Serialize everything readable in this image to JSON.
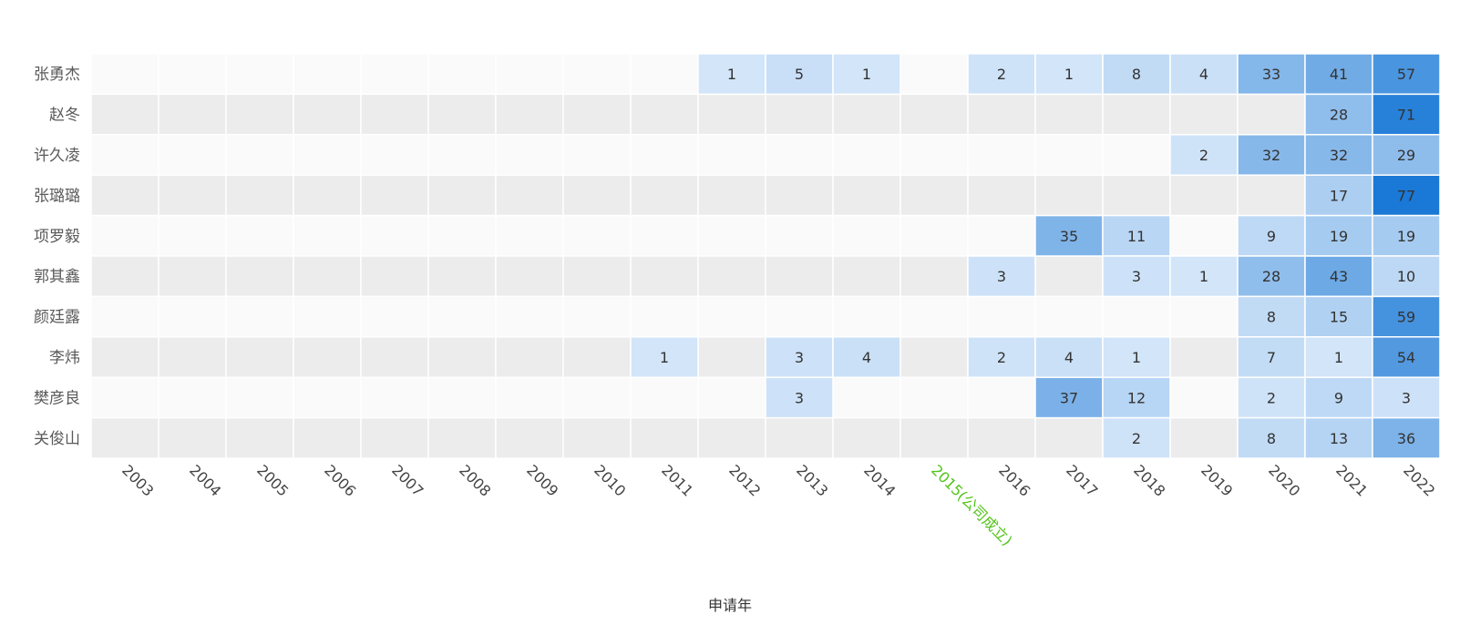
{
  "chart_data": {
    "type": "heatmap",
    "xlabel": "申请年",
    "x": [
      "2003",
      "2004",
      "2005",
      "2006",
      "2007",
      "2008",
      "2009",
      "2010",
      "2011",
      "2012",
      "2013",
      "2014",
      "2015(公司成立)",
      "2016",
      "2017",
      "2018",
      "2019",
      "2020",
      "2021",
      "2022"
    ],
    "highlight_x": "2015(公司成立)",
    "y": [
      "张勇杰",
      "赵冬",
      "许久凌",
      "张璐璐",
      "项罗毅",
      "郭其鑫",
      "颜廷露",
      "李炜",
      "樊彦良",
      "关俊山"
    ],
    "values": [
      [
        null,
        null,
        null,
        null,
        null,
        null,
        null,
        null,
        null,
        1,
        5,
        1,
        null,
        2,
        1,
        8,
        4,
        33,
        41,
        57
      ],
      [
        null,
        null,
        null,
        null,
        null,
        null,
        null,
        null,
        null,
        null,
        null,
        null,
        null,
        null,
        null,
        null,
        null,
        null,
        28,
        71
      ],
      [
        null,
        null,
        null,
        null,
        null,
        null,
        null,
        null,
        null,
        null,
        null,
        null,
        null,
        null,
        null,
        null,
        2,
        32,
        32,
        29
      ],
      [
        null,
        null,
        null,
        null,
        null,
        null,
        null,
        null,
        null,
        null,
        null,
        null,
        null,
        null,
        null,
        null,
        null,
        null,
        17,
        77
      ],
      [
        null,
        null,
        null,
        null,
        null,
        null,
        null,
        null,
        null,
        null,
        null,
        null,
        null,
        null,
        35,
        11,
        null,
        9,
        19,
        19
      ],
      [
        null,
        null,
        null,
        null,
        null,
        null,
        null,
        null,
        null,
        null,
        null,
        null,
        null,
        3,
        null,
        3,
        1,
        28,
        43,
        10
      ],
      [
        null,
        null,
        null,
        null,
        null,
        null,
        null,
        null,
        null,
        null,
        null,
        null,
        null,
        null,
        null,
        null,
        null,
        8,
        15,
        59
      ],
      [
        null,
        null,
        null,
        null,
        null,
        null,
        null,
        null,
        1,
        null,
        3,
        4,
        null,
        2,
        4,
        1,
        null,
        7,
        1,
        54
      ],
      [
        null,
        null,
        null,
        null,
        null,
        null,
        null,
        null,
        null,
        null,
        3,
        null,
        null,
        null,
        37,
        12,
        null,
        2,
        9,
        3
      ],
      [
        null,
        null,
        null,
        null,
        null,
        null,
        null,
        null,
        null,
        null,
        null,
        null,
        null,
        null,
        null,
        2,
        null,
        8,
        13,
        36
      ]
    ],
    "value_range": [
      0,
      77
    ],
    "colors": {
      "low": "#d4e6f9",
      "high": "#1a78d6",
      "row_band_light": "#fafafa",
      "row_band_dark": "#ececec",
      "highlight_label": "#52c41a"
    },
    "legend": "none"
  }
}
